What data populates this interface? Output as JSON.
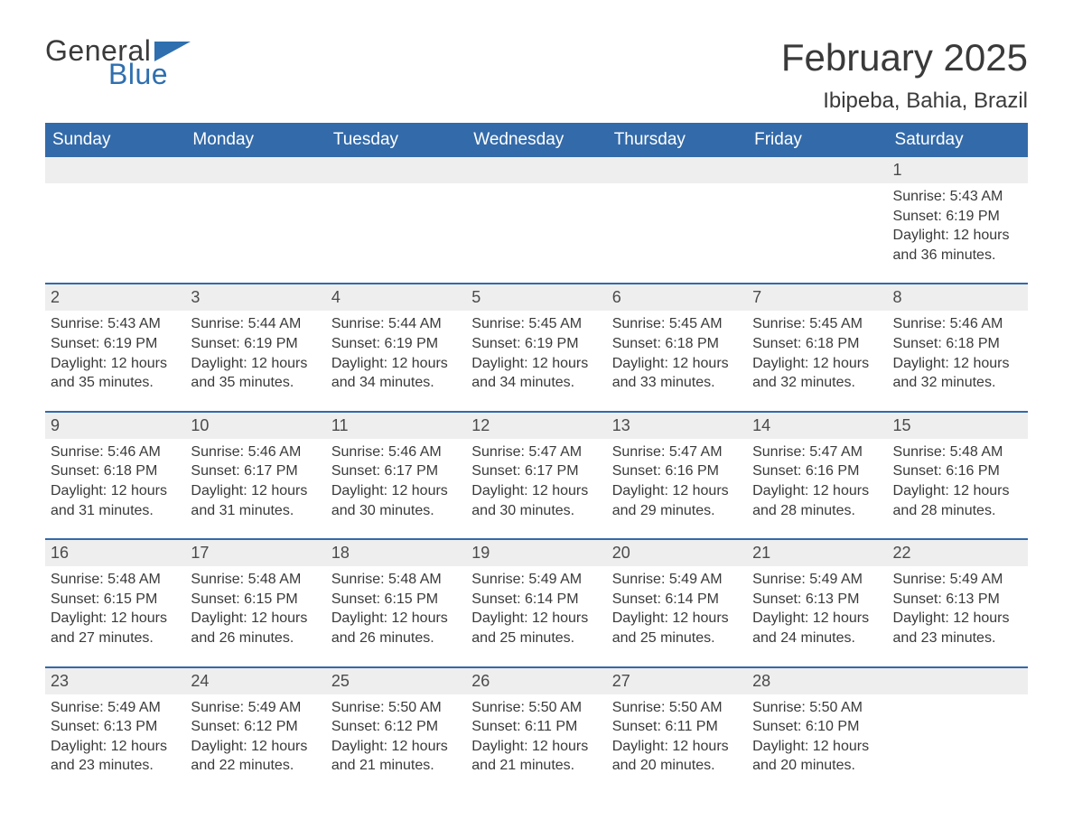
{
  "logo": {
    "text1": "General",
    "text2": "Blue",
    "accent_color": "#2f6faf"
  },
  "title": "February 2025",
  "subtitle": "Ibipeba, Bahia, Brazil",
  "colors": {
    "header_bg": "#336aa9",
    "header_text": "#ffffff",
    "daynum_bg": "#eeeeee",
    "week_border": "#336aa9",
    "body_text": "#3a3a3a",
    "page_bg": "#ffffff"
  },
  "font_sizes": {
    "title": 42,
    "subtitle": 24,
    "dayhead": 19,
    "daynum": 18,
    "body": 16
  },
  "day_headers": [
    "Sunday",
    "Monday",
    "Tuesday",
    "Wednesday",
    "Thursday",
    "Friday",
    "Saturday"
  ],
  "labels": {
    "sunrise": "Sunrise",
    "sunset": "Sunset",
    "daylight": "Daylight"
  },
  "weeks": [
    [
      {
        "n": "",
        "sunrise": "",
        "sunset": "",
        "daylight": ""
      },
      {
        "n": "",
        "sunrise": "",
        "sunset": "",
        "daylight": ""
      },
      {
        "n": "",
        "sunrise": "",
        "sunset": "",
        "daylight": ""
      },
      {
        "n": "",
        "sunrise": "",
        "sunset": "",
        "daylight": ""
      },
      {
        "n": "",
        "sunrise": "",
        "sunset": "",
        "daylight": ""
      },
      {
        "n": "",
        "sunrise": "",
        "sunset": "",
        "daylight": ""
      },
      {
        "n": "1",
        "sunrise": "5:43 AM",
        "sunset": "6:19 PM",
        "daylight": "12 hours and 36 minutes."
      }
    ],
    [
      {
        "n": "2",
        "sunrise": "5:43 AM",
        "sunset": "6:19 PM",
        "daylight": "12 hours and 35 minutes."
      },
      {
        "n": "3",
        "sunrise": "5:44 AM",
        "sunset": "6:19 PM",
        "daylight": "12 hours and 35 minutes."
      },
      {
        "n": "4",
        "sunrise": "5:44 AM",
        "sunset": "6:19 PM",
        "daylight": "12 hours and 34 minutes."
      },
      {
        "n": "5",
        "sunrise": "5:45 AM",
        "sunset": "6:19 PM",
        "daylight": "12 hours and 34 minutes."
      },
      {
        "n": "6",
        "sunrise": "5:45 AM",
        "sunset": "6:18 PM",
        "daylight": "12 hours and 33 minutes."
      },
      {
        "n": "7",
        "sunrise": "5:45 AM",
        "sunset": "6:18 PM",
        "daylight": "12 hours and 32 minutes."
      },
      {
        "n": "8",
        "sunrise": "5:46 AM",
        "sunset": "6:18 PM",
        "daylight": "12 hours and 32 minutes."
      }
    ],
    [
      {
        "n": "9",
        "sunrise": "5:46 AM",
        "sunset": "6:18 PM",
        "daylight": "12 hours and 31 minutes."
      },
      {
        "n": "10",
        "sunrise": "5:46 AM",
        "sunset": "6:17 PM",
        "daylight": "12 hours and 31 minutes."
      },
      {
        "n": "11",
        "sunrise": "5:46 AM",
        "sunset": "6:17 PM",
        "daylight": "12 hours and 30 minutes."
      },
      {
        "n": "12",
        "sunrise": "5:47 AM",
        "sunset": "6:17 PM",
        "daylight": "12 hours and 30 minutes."
      },
      {
        "n": "13",
        "sunrise": "5:47 AM",
        "sunset": "6:16 PM",
        "daylight": "12 hours and 29 minutes."
      },
      {
        "n": "14",
        "sunrise": "5:47 AM",
        "sunset": "6:16 PM",
        "daylight": "12 hours and 28 minutes."
      },
      {
        "n": "15",
        "sunrise": "5:48 AM",
        "sunset": "6:16 PM",
        "daylight": "12 hours and 28 minutes."
      }
    ],
    [
      {
        "n": "16",
        "sunrise": "5:48 AM",
        "sunset": "6:15 PM",
        "daylight": "12 hours and 27 minutes."
      },
      {
        "n": "17",
        "sunrise": "5:48 AM",
        "sunset": "6:15 PM",
        "daylight": "12 hours and 26 minutes."
      },
      {
        "n": "18",
        "sunrise": "5:48 AM",
        "sunset": "6:15 PM",
        "daylight": "12 hours and 26 minutes."
      },
      {
        "n": "19",
        "sunrise": "5:49 AM",
        "sunset": "6:14 PM",
        "daylight": "12 hours and 25 minutes."
      },
      {
        "n": "20",
        "sunrise": "5:49 AM",
        "sunset": "6:14 PM",
        "daylight": "12 hours and 25 minutes."
      },
      {
        "n": "21",
        "sunrise": "5:49 AM",
        "sunset": "6:13 PM",
        "daylight": "12 hours and 24 minutes."
      },
      {
        "n": "22",
        "sunrise": "5:49 AM",
        "sunset": "6:13 PM",
        "daylight": "12 hours and 23 minutes."
      }
    ],
    [
      {
        "n": "23",
        "sunrise": "5:49 AM",
        "sunset": "6:13 PM",
        "daylight": "12 hours and 23 minutes."
      },
      {
        "n": "24",
        "sunrise": "5:49 AM",
        "sunset": "6:12 PM",
        "daylight": "12 hours and 22 minutes."
      },
      {
        "n": "25",
        "sunrise": "5:50 AM",
        "sunset": "6:12 PM",
        "daylight": "12 hours and 21 minutes."
      },
      {
        "n": "26",
        "sunrise": "5:50 AM",
        "sunset": "6:11 PM",
        "daylight": "12 hours and 21 minutes."
      },
      {
        "n": "27",
        "sunrise": "5:50 AM",
        "sunset": "6:11 PM",
        "daylight": "12 hours and 20 minutes."
      },
      {
        "n": "28",
        "sunrise": "5:50 AM",
        "sunset": "6:10 PM",
        "daylight": "12 hours and 20 minutes."
      },
      {
        "n": "",
        "sunrise": "",
        "sunset": "",
        "daylight": ""
      }
    ]
  ]
}
